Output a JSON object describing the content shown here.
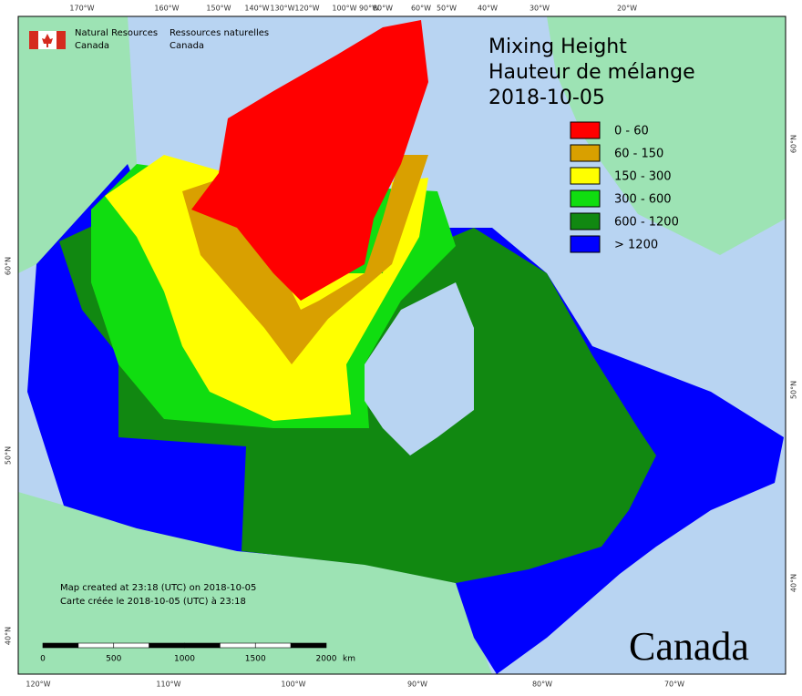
{
  "header": {
    "agency_en": "Natural Resources",
    "agency_en2": "Canada",
    "agency_fr": "Ressources naturelles",
    "agency_fr2": "Canada"
  },
  "title": {
    "line1": "Mixing Height",
    "line2": "Hauteur de mélange",
    "date": "2018-10-05"
  },
  "legend": [
    {
      "label": "0 - 60",
      "color": "#ff0000"
    },
    {
      "label": "60 - 150",
      "color": "#d9a000"
    },
    {
      "label": "150 - 300",
      "color": "#ffff00"
    },
    {
      "label": "300 - 600",
      "color": "#10dd10"
    },
    {
      "label": "600 - 1200",
      "color": "#118811"
    },
    {
      "label": "> 1200",
      "color": "#0000ff"
    }
  ],
  "top_labels": [
    "170°W",
    "160°W",
    "150°W",
    "140°W",
    "130°W",
    "120°W",
    "100°W",
    "90°W",
    "80°W",
    "60°W",
    "50°W",
    "40°W",
    "30°W",
    "20°W"
  ],
  "bottom_labels": [
    "120°W",
    "110°W",
    "100°W",
    "90°W",
    "80°W",
    "70°W"
  ],
  "left_labels": [
    "60°N",
    "50°N",
    "40°N"
  ],
  "right_labels": [
    "60°N",
    "50°N",
    "40°N"
  ],
  "footnote": {
    "en": "Map created at 23:18 (UTC) on 2018-10-05",
    "fr": "Carte créée le 2018-10-05 (UTC) à 23:18"
  },
  "scale": {
    "labels": [
      "0",
      "500",
      "1000",
      "1500",
      "2000"
    ],
    "unit": "km"
  },
  "wordmark": "Canada"
}
